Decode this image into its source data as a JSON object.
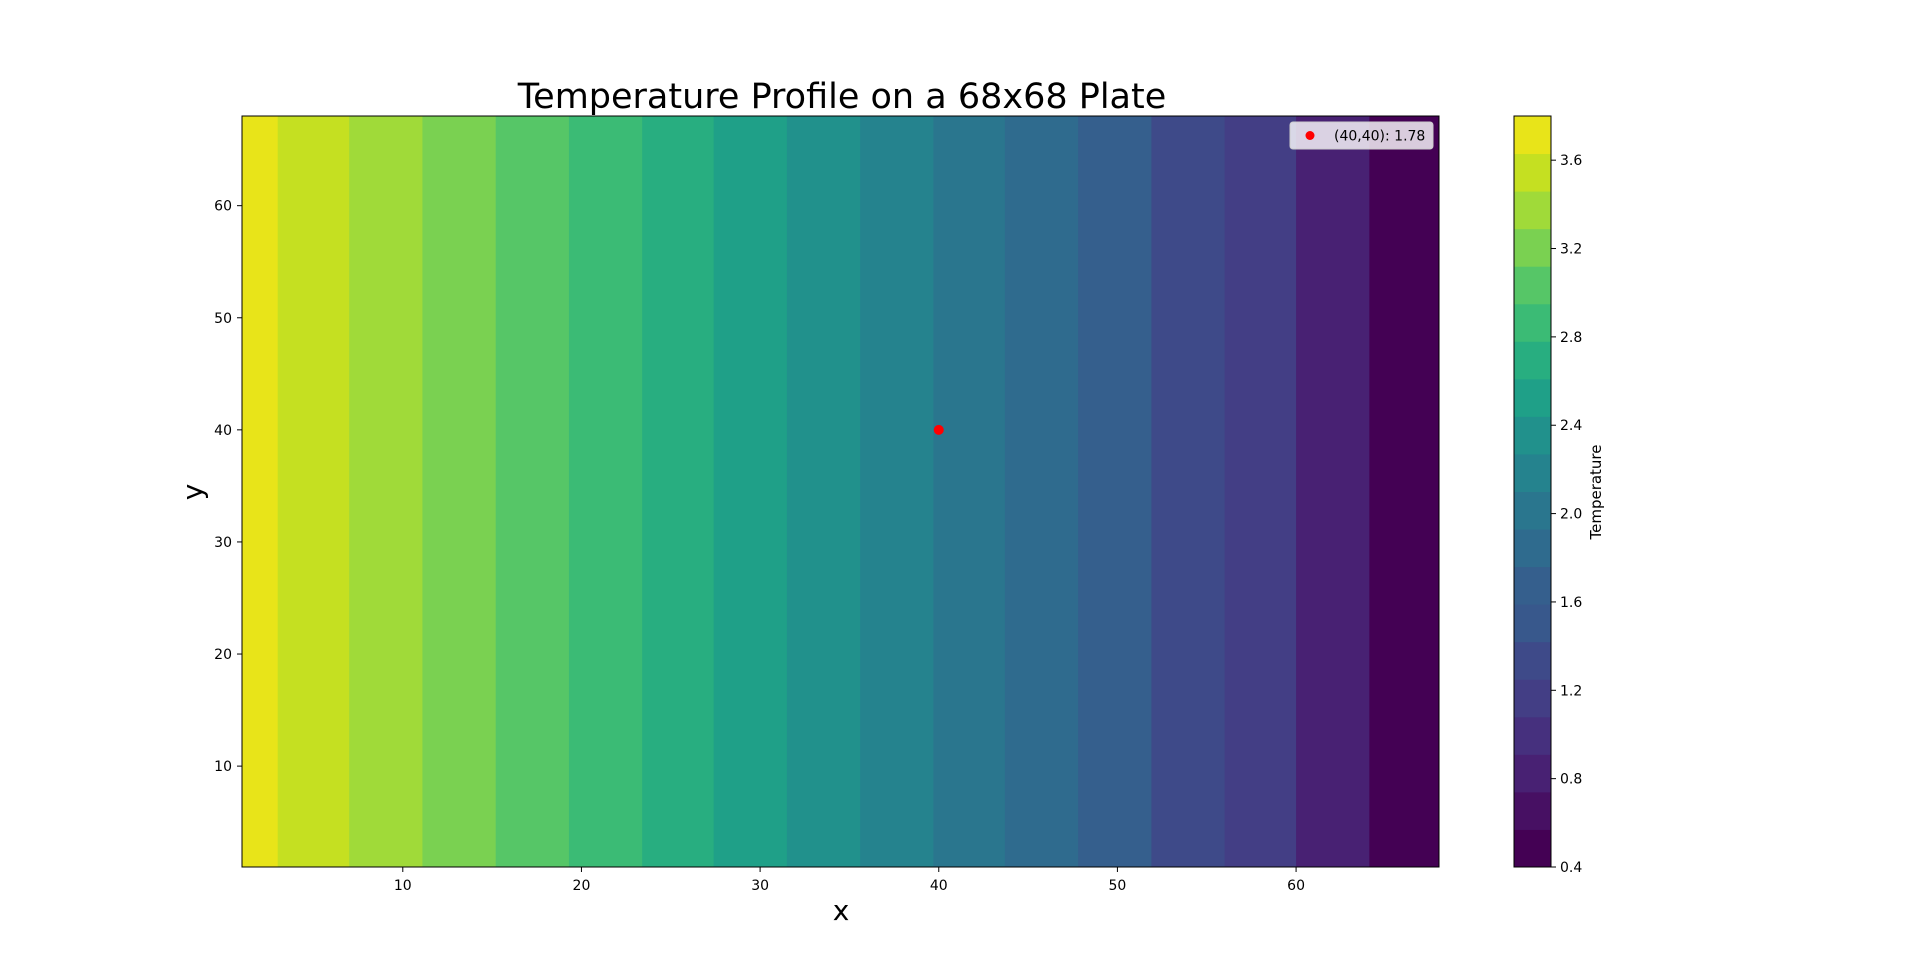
{
  "chart_data": {
    "type": "heatmap",
    "title": "Temperature Profile on a 68x68 Plate",
    "xlabel": "x",
    "ylabel": "y",
    "xlim": [
      1,
      68
    ],
    "ylim": [
      1,
      68
    ],
    "xticks": [
      10,
      20,
      30,
      40,
      50,
      60
    ],
    "yticks": [
      10,
      20,
      30,
      40,
      50,
      60
    ],
    "colorbar": {
      "label": "Temperature",
      "range": [
        0.4,
        3.8
      ],
      "ticks": [
        0.4,
        0.8,
        1.2,
        1.6,
        2.0,
        2.4,
        2.8,
        3.2,
        3.6
      ],
      "level_step": 0.2,
      "colormap": "viridis"
    },
    "bands": [
      {
        "x_start": 1,
        "x_end": 3,
        "temp_level": [
          3.6,
          3.8
        ],
        "color": "#e8e419"
      },
      {
        "x_start": 3,
        "x_end": 7,
        "temp_level": [
          3.4,
          3.6
        ],
        "color": "#c5e021"
      },
      {
        "x_start": 7,
        "x_end": 11.1,
        "temp_level": [
          3.2,
          3.4
        ],
        "color": "#a0da39"
      },
      {
        "x_start": 11.1,
        "x_end": 15.2,
        "temp_level": [
          3.0,
          3.2
        ],
        "color": "#7ad151"
      },
      {
        "x_start": 15.2,
        "x_end": 19.3,
        "temp_level": [
          2.8,
          3.0
        ],
        "color": "#56c667"
      },
      {
        "x_start": 19.3,
        "x_end": 23.4,
        "temp_level": [
          2.6,
          2.8
        ],
        "color": "#3bbb75"
      },
      {
        "x_start": 23.4,
        "x_end": 27.4,
        "temp_level": [
          2.4,
          2.6
        ],
        "color": "#28ae80"
      },
      {
        "x_start": 27.4,
        "x_end": 31.5,
        "temp_level": [
          2.2,
          2.4
        ],
        "color": "#1fa088"
      },
      {
        "x_start": 31.5,
        "x_end": 35.6,
        "temp_level": [
          2.0,
          2.2
        ],
        "color": "#21918c"
      },
      {
        "x_start": 35.6,
        "x_end": 39.7,
        "temp_level": [
          1.8,
          2.0
        ],
        "color": "#25838e"
      },
      {
        "x_start": 39.7,
        "x_end": 43.7,
        "temp_level": [
          1.6,
          1.8
        ],
        "color": "#2a768e"
      },
      {
        "x_start": 43.7,
        "x_end": 47.8,
        "temp_level": [
          1.4,
          1.6
        ],
        "color": "#2f6b8e"
      },
      {
        "x_start": 47.8,
        "x_end": 51.9,
        "temp_level": [
          1.2,
          1.4
        ],
        "color": "#355f8d"
      },
      {
        "x_start": 51.9,
        "x_end": 56,
        "temp_level": [
          1.0,
          1.2
        ],
        "color": "#3e4a89"
      },
      {
        "x_start": 56,
        "x_end": 60,
        "temp_level": [
          0.8,
          1.0
        ],
        "color": "#433e85"
      },
      {
        "x_start": 60,
        "x_end": 64.1,
        "temp_level": [
          0.6,
          0.8
        ],
        "color": "#482173"
      },
      {
        "x_start": 64.1,
        "x_end": 68,
        "temp_level": [
          0.4,
          0.6
        ],
        "color": "#440154"
      }
    ],
    "colorbar_colors": [
      "#440154",
      "#471063",
      "#482173",
      "#46307e",
      "#433e85",
      "#3e4a89",
      "#38588c",
      "#355f8d",
      "#2f6b8e",
      "#2a768e",
      "#25838e",
      "#21918c",
      "#1fa088",
      "#28ae80",
      "#3bbb75",
      "#56c667",
      "#7ad151",
      "#a0da39",
      "#c5e021",
      "#e8e419"
    ],
    "marker": {
      "x": 40,
      "y": 40,
      "value": 1.78,
      "color": "#ff0000"
    },
    "legend": {
      "text": "(40,40): 1.78",
      "placement": "upper-right"
    }
  }
}
